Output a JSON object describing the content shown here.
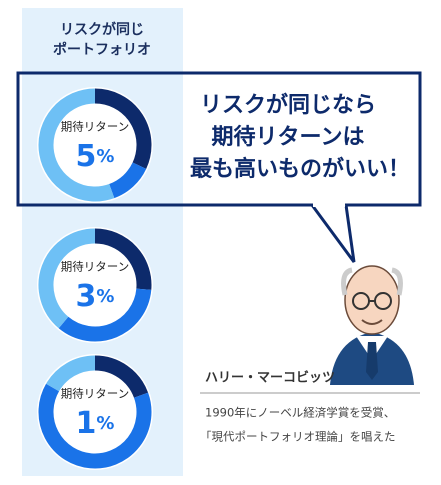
{
  "column": {
    "title_lines": [
      "リスクが同じ",
      "ポートフォリオ"
    ],
    "items": [
      {
        "label": "期待リターン",
        "value": "5",
        "unit": "%"
      },
      {
        "label": "期待リターン",
        "value": "3",
        "unit": "%"
      },
      {
        "label": "期待リターン",
        "value": "1",
        "unit": "%"
      }
    ]
  },
  "bubble": {
    "lines": [
      "リスクが同じなら",
      "期待リターンは",
      "最も高いものがいい！"
    ]
  },
  "person": {
    "name": "ハリー・マーコビッツ",
    "description": [
      "1990年にノーベル経済学賞を受賞、",
      "「現代ポートフォリオ理論」を唱えた"
    ]
  }
}
